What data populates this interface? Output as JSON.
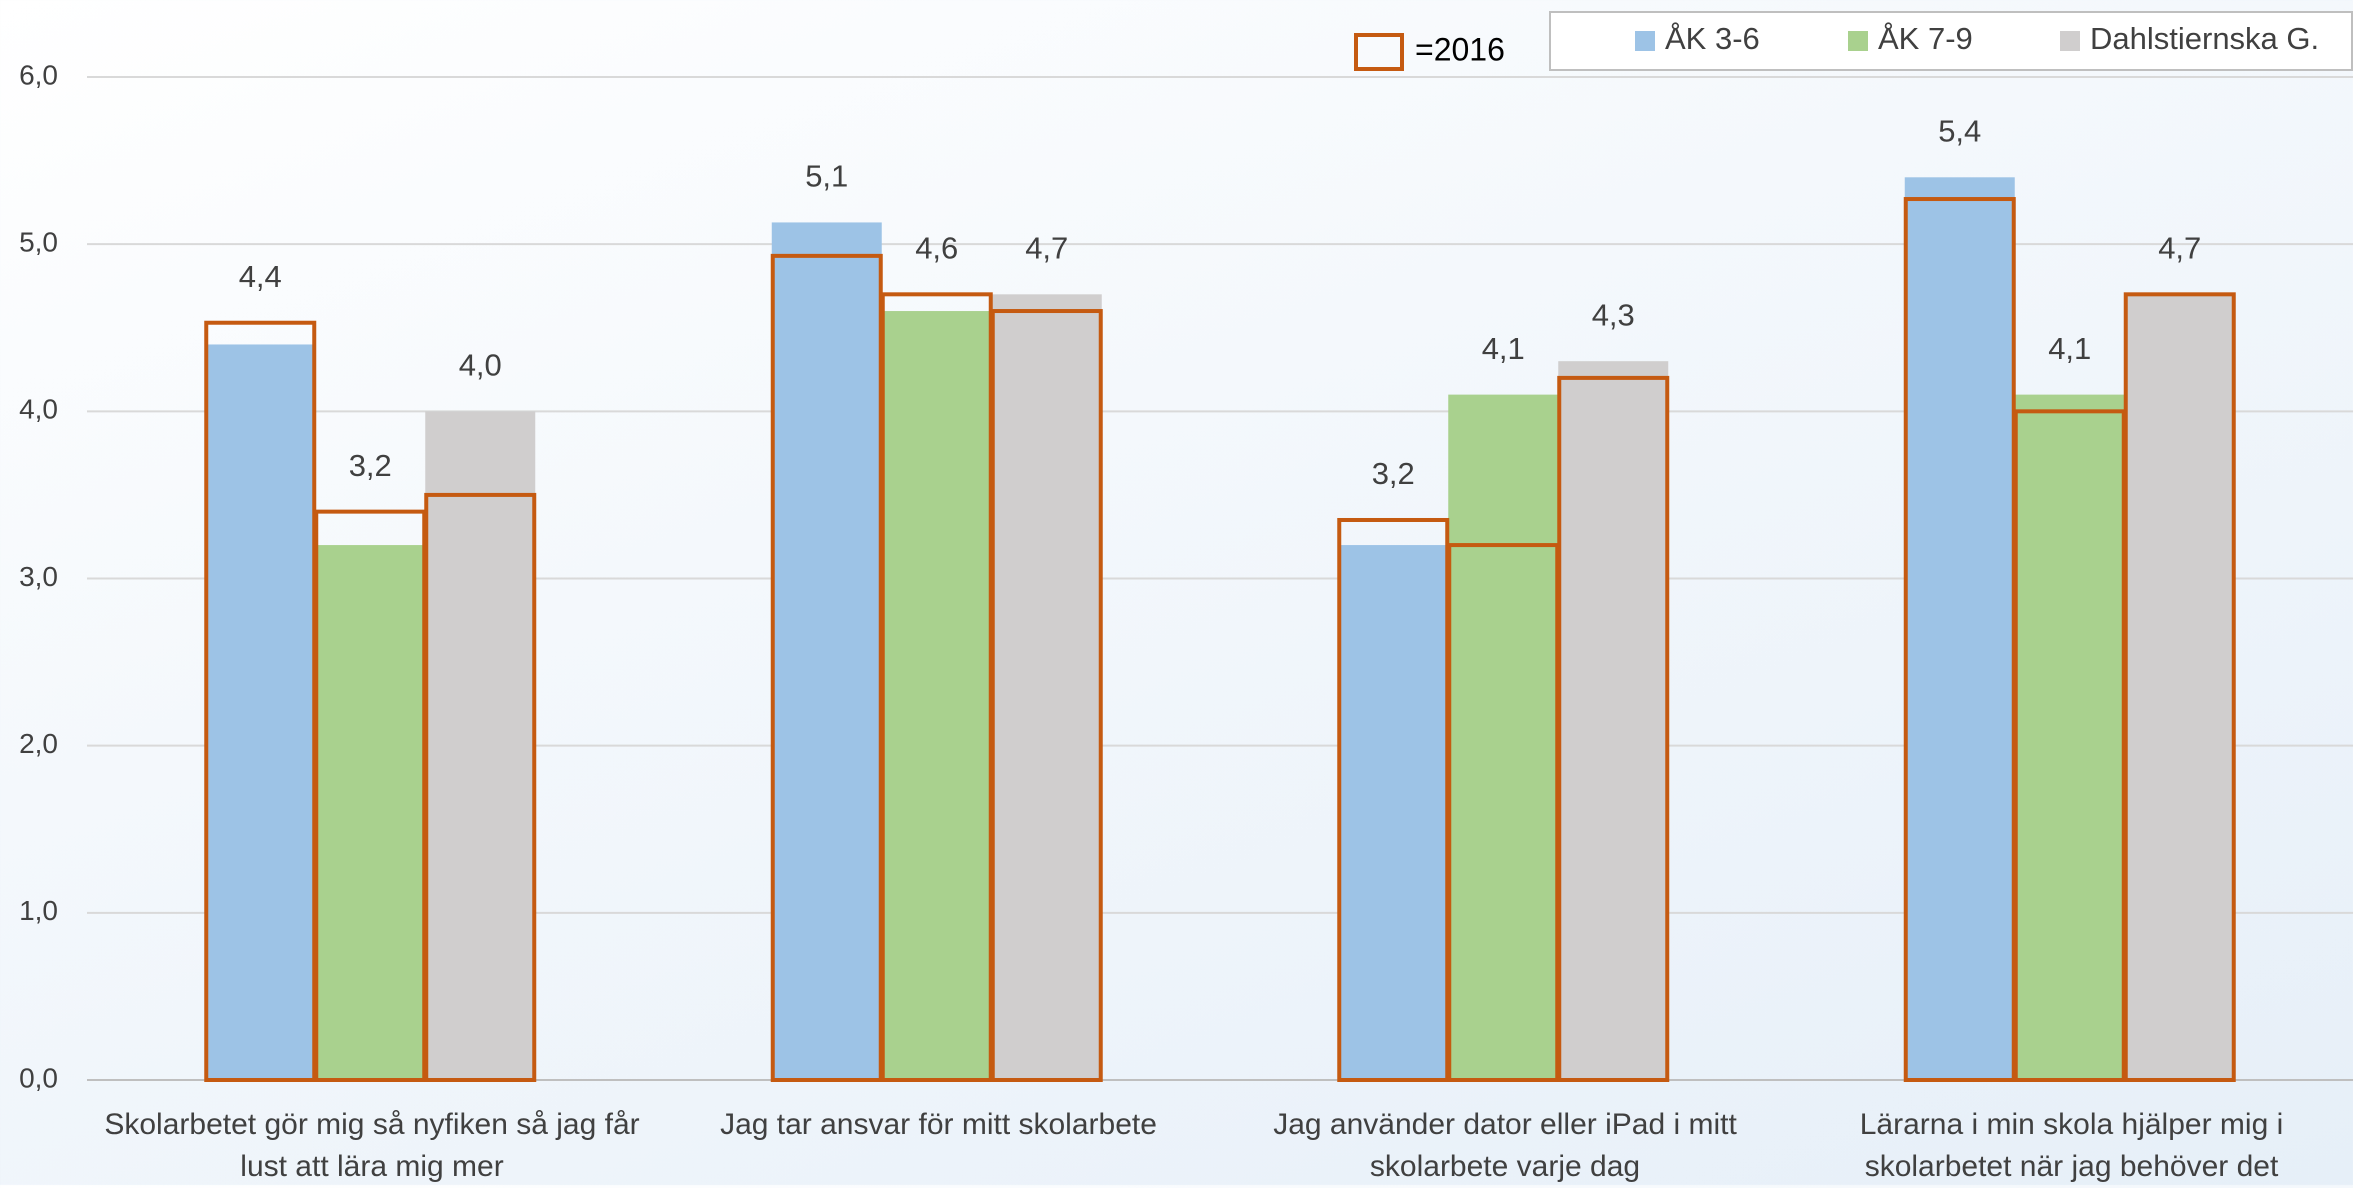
{
  "chart_data": {
    "type": "bar",
    "categories": [
      "Skolarbetet gör mig så nyfiken så jag får lust att lära mig mer",
      "Jag tar ansvar för mitt skolarbete",
      "Jag använder dator eller iPad i mitt skolarbete varje dag",
      "Lärarna i min skola hjälper mig i skolarbetet när jag behöver det"
    ],
    "series": [
      {
        "name": "ÅK 3-6",
        "color": "#9dc3e6",
        "values": [
          4.4,
          5.13,
          3.2,
          5.4
        ],
        "value_labels": [
          "4,4",
          "5,1",
          "3,2",
          "5,4"
        ]
      },
      {
        "name": "ÅK 7-9",
        "color": "#a9d18e",
        "values": [
          3.2,
          4.6,
          4.1,
          4.1
        ],
        "value_labels": [
          "3,2",
          "4,6",
          "4,1",
          "4,1"
        ]
      },
      {
        "name": "Dahlstiernska G.",
        "color": "#d0cece",
        "values": [
          4.0,
          4.7,
          4.3,
          4.7
        ],
        "value_labels": [
          "4,0",
          "4,7",
          "4,3",
          "4,7"
        ]
      }
    ],
    "outline": {
      "name": "=2016",
      "color": "#c55a11",
      "series": [
        [
          4.53,
          4.93,
          3.35,
          5.27
        ],
        [
          3.4,
          4.7,
          3.2,
          4.0
        ],
        [
          3.5,
          4.6,
          4.2,
          4.7
        ]
      ]
    },
    "ylim": [
      0,
      6
    ],
    "yticks": [
      {
        "value": 0,
        "label": "0,0"
      },
      {
        "value": 1,
        "label": "1,0"
      },
      {
        "value": 2,
        "label": "2,0"
      },
      {
        "value": 3,
        "label": "3,0"
      },
      {
        "value": 4,
        "label": "4,0"
      },
      {
        "value": 5,
        "label": "5,0"
      },
      {
        "value": 6,
        "label": "6,0"
      }
    ],
    "grid": true,
    "legend": "top-right"
  }
}
